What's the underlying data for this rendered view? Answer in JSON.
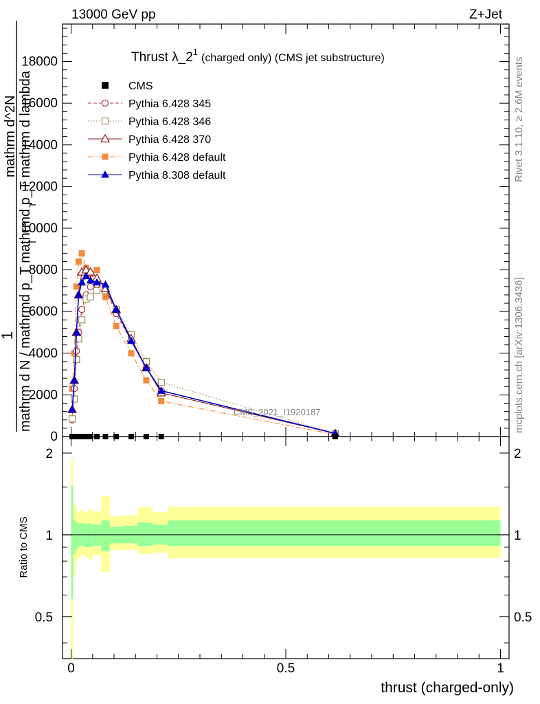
{
  "header": {
    "left": "13000 GeV pp",
    "right": "Z+Jet"
  },
  "title": {
    "main": "Thrust λ_2",
    "superscript": "1",
    "suffix": "(charged only) (CMS jet substructure)"
  },
  "side_labels": {
    "rivet": "Rivet 3.1.10, ≥ 2.6M events",
    "mcplots": "mcplots.cern.ch [arXiv:1306.3436]"
  },
  "watermark": "CMS_2021_I1920187",
  "y_label": {
    "numerator_one": "1",
    "denominator": "mathrm d N / mathrmd p_T mathrmd p_T mathrm d lambda",
    "numerator_frac": "mathrm d^2N",
    "sub_t": "T",
    "sub_t2": "T"
  },
  "ratio_label": "Ratio to CMS",
  "x_label": "thrust (charged-only)",
  "colors": {
    "cms": "#000000",
    "p345": "#aa3344",
    "p346": "#9b8a55",
    "p370": "#8b1a1a",
    "pdef": "#f58a3c",
    "p8": "#0000cc",
    "band_outer": "#ffff99",
    "band_inner": "#99ff99"
  },
  "chart_data": [
    {
      "type": "line",
      "panel": "main",
      "xlim": [
        -0.02,
        1.02
      ],
      "ylim": [
        0,
        19800
      ],
      "x_ticks": [
        0,
        0.5,
        1
      ],
      "y_ticks": [
        0,
        2000,
        4000,
        6000,
        8000,
        10000,
        12000,
        14000,
        16000,
        18000
      ],
      "y_tick_labels": [
        "0",
        "2000",
        "4000",
        "6000",
        "8000",
        "10000",
        "12000",
        "14000",
        "16000",
        "18000"
      ],
      "legend_placement": "top-left",
      "series": [
        {
          "name": "CMS",
          "style": "square-filled",
          "color": "#000000",
          "x": [
            0.0025,
            0.0075,
            0.0125,
            0.0175,
            0.025,
            0.035,
            0.045,
            0.06,
            0.08,
            0.105,
            0.14,
            0.175,
            0.21,
            0.615
          ],
          "y": [
            0,
            0,
            0,
            0,
            0,
            0,
            0,
            0,
            0,
            0,
            0,
            0,
            0,
            0
          ]
        },
        {
          "name": "Pythia 6.428 345",
          "style": "circle-open-dashed",
          "color": "#aa3344",
          "x": [
            0.0025,
            0.0075,
            0.0125,
            0.0175,
            0.025,
            0.035,
            0.045,
            0.06,
            0.08,
            0.105,
            0.14,
            0.175,
            0.21,
            0.615
          ],
          "y": [
            800,
            2300,
            4100,
            5000,
            6100,
            6800,
            7200,
            7300,
            7100,
            5900,
            4600,
            3300,
            2200,
            150
          ]
        },
        {
          "name": "Pythia 6.428 346",
          "style": "square-open-dotted",
          "color": "#9b8a55",
          "x": [
            0.0025,
            0.0075,
            0.0125,
            0.0175,
            0.025,
            0.035,
            0.045,
            0.06,
            0.08,
            0.105,
            0.14,
            0.175,
            0.21,
            0.615
          ],
          "y": [
            850,
            1800,
            3700,
            4700,
            5600,
            6600,
            6700,
            7000,
            7000,
            6100,
            4900,
            3600,
            2600,
            150
          ]
        },
        {
          "name": "Pythia 6.428 370",
          "style": "triangle-open-solid",
          "color": "#8b1a1a",
          "x": [
            0.0025,
            0.0075,
            0.0125,
            0.0175,
            0.025,
            0.035,
            0.045,
            0.06,
            0.08,
            0.105,
            0.14,
            0.175,
            0.21,
            0.615
          ],
          "y": [
            1300,
            2700,
            5000,
            6800,
            7900,
            8000,
            7900,
            7600,
            7100,
            6100,
            4700,
            3300,
            2100,
            150
          ]
        },
        {
          "name": "Pythia 6.428 default",
          "style": "square-filled-dashdot",
          "color": "#f58a3c",
          "x": [
            0.0025,
            0.0075,
            0.0125,
            0.0175,
            0.025,
            0.035,
            0.045,
            0.06,
            0.08,
            0.105,
            0.14,
            0.175,
            0.21,
            0.615
          ],
          "y": [
            2300,
            4000,
            7200,
            8400,
            8800,
            8100,
            7800,
            8000,
            6700,
            5300,
            4000,
            2700,
            1700,
            100
          ]
        },
        {
          "name": "Pythia 8.308 default",
          "style": "triangle-filled-solid",
          "color": "#0000cc",
          "x": [
            0.0025,
            0.0075,
            0.0125,
            0.0175,
            0.025,
            0.035,
            0.045,
            0.06,
            0.08,
            0.105,
            0.14,
            0.175,
            0.21,
            0.615
          ],
          "y": [
            1300,
            2700,
            5000,
            6800,
            7400,
            7700,
            7500,
            7400,
            7300,
            6100,
            4600,
            3300,
            2200,
            150
          ]
        }
      ]
    },
    {
      "type": "area",
      "panel": "ratio",
      "xlim": [
        -0.02,
        1.02
      ],
      "ylim": [
        0.35,
        2.3
      ],
      "x_ticks": [
        0,
        0.5,
        1
      ],
      "x_tick_labels": [
        "0",
        "0.5",
        "1"
      ],
      "y_ticks": [
        0.5,
        1,
        2
      ],
      "y_tick_labels": [
        "0.5",
        "1",
        "2"
      ],
      "reference_line": 1,
      "bins": [
        {
          "x0": 0,
          "x1": 0.005,
          "outer": [
            0.35,
            1.92
          ],
          "inner": [
            0.58,
            1.52
          ]
        },
        {
          "x0": 0.005,
          "x1": 0.01,
          "outer": [
            0.7,
            1.3
          ],
          "inner": [
            0.85,
            1.14
          ]
        },
        {
          "x0": 0.01,
          "x1": 0.015,
          "outer": [
            0.8,
            1.25
          ],
          "inner": [
            0.88,
            1.11
          ]
        },
        {
          "x0": 0.015,
          "x1": 0.02,
          "outer": [
            0.82,
            1.21
          ],
          "inner": [
            0.9,
            1.1
          ]
        },
        {
          "x0": 0.02,
          "x1": 0.03,
          "outer": [
            0.84,
            1.23
          ],
          "inner": [
            0.91,
            1.1
          ]
        },
        {
          "x0": 0.03,
          "x1": 0.04,
          "outer": [
            0.83,
            1.21
          ],
          "inner": [
            0.9,
            1.1
          ]
        },
        {
          "x0": 0.04,
          "x1": 0.05,
          "outer": [
            0.81,
            1.24
          ],
          "inner": [
            0.9,
            1.1
          ]
        },
        {
          "x0": 0.05,
          "x1": 0.07,
          "outer": [
            0.84,
            1.22
          ],
          "inner": [
            0.91,
            1.09
          ]
        },
        {
          "x0": 0.07,
          "x1": 0.09,
          "outer": [
            0.73,
            1.39
          ],
          "inner": [
            0.87,
            1.13
          ]
        },
        {
          "x0": 0.09,
          "x1": 0.12,
          "outer": [
            0.88,
            1.17
          ],
          "inner": [
            0.93,
            1.07
          ]
        },
        {
          "x0": 0.12,
          "x1": 0.155,
          "outer": [
            0.88,
            1.18
          ],
          "inner": [
            0.93,
            1.08
          ]
        },
        {
          "x0": 0.155,
          "x1": 0.19,
          "outer": [
            0.85,
            1.26
          ],
          "inner": [
            0.91,
            1.11
          ]
        },
        {
          "x0": 0.19,
          "x1": 0.225,
          "outer": [
            0.86,
            1.21
          ],
          "inner": [
            0.92,
            1.09
          ]
        },
        {
          "x0": 0.225,
          "x1": 1.0,
          "outer": [
            0.82,
            1.27
          ],
          "inner": [
            0.91,
            1.13
          ]
        }
      ]
    }
  ]
}
